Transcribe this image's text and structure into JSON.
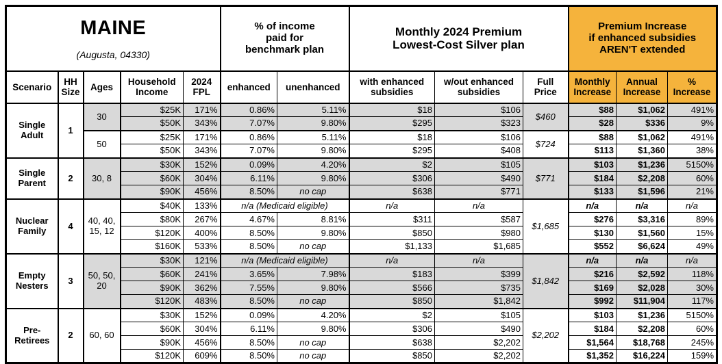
{
  "title": {
    "state": "MAINE",
    "city": "(Augusta, 04330)"
  },
  "section_headers": {
    "income_pct": "% of income\npaid for\nbenchmark plan",
    "premium": "Monthly 2024 Premium\nLowest-Cost Silver plan",
    "increase": "Premium Increase\nif enhanced subsidies\nAREN'T extended"
  },
  "column_headers": {
    "scenario": "Scenario",
    "hh_size": "HH\nSize",
    "ages": "Ages",
    "income": "Household\nIncome",
    "fpl": "2024\nFPL",
    "enhanced": "enhanced",
    "unenhanced": "unenhanced",
    "with_sub": "with enhanced\nsubsidies",
    "wout_sub": "w/out enhanced\nsubsidies",
    "full_price": "Full\nPrice",
    "monthly": "Monthly\nIncrease",
    "annual": "Annual\nIncrease",
    "pct": "%\nIncrease"
  },
  "colors": {
    "accent_orange": "#F5B33C",
    "row_gray": "#D9D9D9"
  },
  "chart_data": {
    "type": "table",
    "title": "MAINE (Augusta, 04330)",
    "groups": [
      {
        "scenario": "Single Adult",
        "hh_size": "1",
        "subgroups": [
          {
            "ages": "30",
            "shaded": true,
            "full_price": "$460",
            "rows": [
              {
                "income": "$25K",
                "fpl": "171%",
                "enhanced": "0.86%",
                "unenhanced": "5.11%",
                "with_sub": "$18",
                "wout_sub": "$106",
                "monthly": "$88",
                "annual": "$1,062",
                "pct": "491%"
              },
              {
                "income": "$50K",
                "fpl": "343%",
                "enhanced": "7.07%",
                "unenhanced": "9.80%",
                "with_sub": "$295",
                "wout_sub": "$323",
                "monthly": "$28",
                "annual": "$336",
                "pct": "9%"
              }
            ]
          },
          {
            "ages": "50",
            "shaded": false,
            "full_price": "$724",
            "rows": [
              {
                "income": "$25K",
                "fpl": "171%",
                "enhanced": "0.86%",
                "unenhanced": "5.11%",
                "with_sub": "$18",
                "wout_sub": "$106",
                "monthly": "$88",
                "annual": "$1,062",
                "pct": "491%"
              },
              {
                "income": "$50K",
                "fpl": "343%",
                "enhanced": "7.07%",
                "unenhanced": "9.80%",
                "with_sub": "$295",
                "wout_sub": "$408",
                "monthly": "$113",
                "annual": "$1,360",
                "pct": "38%"
              }
            ]
          }
        ]
      },
      {
        "scenario": "Single Parent",
        "hh_size": "2",
        "subgroups": [
          {
            "ages": "30, 8",
            "shaded": true,
            "full_price": "$771",
            "rows": [
              {
                "income": "$30K",
                "fpl": "152%",
                "enhanced": "0.09%",
                "unenhanced": "4.20%",
                "with_sub": "$2",
                "wout_sub": "$105",
                "monthly": "$103",
                "annual": "$1,236",
                "pct": "5150%"
              },
              {
                "income": "$60K",
                "fpl": "304%",
                "enhanced": "6.11%",
                "unenhanced": "9.80%",
                "with_sub": "$306",
                "wout_sub": "$490",
                "monthly": "$184",
                "annual": "$2,208",
                "pct": "60%"
              },
              {
                "income": "$90K",
                "fpl": "456%",
                "enhanced": "8.50%",
                "unenhanced": "no cap",
                "with_sub": "$638",
                "wout_sub": "$771",
                "monthly": "$133",
                "annual": "$1,596",
                "pct": "21%"
              }
            ]
          }
        ]
      },
      {
        "scenario": "Nuclear Family",
        "hh_size": "4",
        "subgroups": [
          {
            "ages": "40, 40, 15, 12",
            "shaded": false,
            "full_price": "$1,685",
            "rows": [
              {
                "income": "$40K",
                "fpl": "133%",
                "medicaid": "n/a (Medicaid eligible)",
                "with_sub": "n/a",
                "wout_sub": "n/a",
                "monthly": "n/a",
                "annual": "n/a",
                "pct": "n/a"
              },
              {
                "income": "$80K",
                "fpl": "267%",
                "enhanced": "4.67%",
                "unenhanced": "8.81%",
                "with_sub": "$311",
                "wout_sub": "$587",
                "monthly": "$276",
                "annual": "$3,316",
                "pct": "89%"
              },
              {
                "income": "$120K",
                "fpl": "400%",
                "enhanced": "8.50%",
                "unenhanced": "9.80%",
                "with_sub": "$850",
                "wout_sub": "$980",
                "monthly": "$130",
                "annual": "$1,560",
                "pct": "15%"
              },
              {
                "income": "$160K",
                "fpl": "533%",
                "enhanced": "8.50%",
                "unenhanced": "no cap",
                "with_sub": "$1,133",
                "wout_sub": "$1,685",
                "monthly": "$552",
                "annual": "$6,624",
                "pct": "49%"
              }
            ]
          }
        ]
      },
      {
        "scenario": "Empty Nesters",
        "hh_size": "3",
        "subgroups": [
          {
            "ages": "50, 50, 20",
            "shaded": true,
            "full_price": "$1,842",
            "rows": [
              {
                "income": "$30K",
                "fpl": "121%",
                "medicaid": "n/a (Medicaid eligible)",
                "with_sub": "n/a",
                "wout_sub": "n/a",
                "monthly": "n/a",
                "annual": "n/a",
                "pct": "n/a"
              },
              {
                "income": "$60K",
                "fpl": "241%",
                "enhanced": "3.65%",
                "unenhanced": "7.98%",
                "with_sub": "$183",
                "wout_sub": "$399",
                "monthly": "$216",
                "annual": "$2,592",
                "pct": "118%"
              },
              {
                "income": "$90K",
                "fpl": "362%",
                "enhanced": "7.55%",
                "unenhanced": "9.80%",
                "with_sub": "$566",
                "wout_sub": "$735",
                "monthly": "$169",
                "annual": "$2,028",
                "pct": "30%"
              },
              {
                "income": "$120K",
                "fpl": "483%",
                "enhanced": "8.50%",
                "unenhanced": "no cap",
                "with_sub": "$850",
                "wout_sub": "$1,842",
                "monthly": "$992",
                "annual": "$11,904",
                "pct": "117%"
              }
            ]
          }
        ]
      },
      {
        "scenario": "Pre-Retirees",
        "hh_size": "2",
        "subgroups": [
          {
            "ages": "60, 60",
            "shaded": false,
            "full_price": "$2,202",
            "rows": [
              {
                "income": "$30K",
                "fpl": "152%",
                "enhanced": "0.09%",
                "unenhanced": "4.20%",
                "with_sub": "$2",
                "wout_sub": "$105",
                "monthly": "$103",
                "annual": "$1,236",
                "pct": "5150%"
              },
              {
                "income": "$60K",
                "fpl": "304%",
                "enhanced": "6.11%",
                "unenhanced": "9.80%",
                "with_sub": "$306",
                "wout_sub": "$490",
                "monthly": "$184",
                "annual": "$2,208",
                "pct": "60%"
              },
              {
                "income": "$90K",
                "fpl": "456%",
                "enhanced": "8.50%",
                "unenhanced": "no cap",
                "with_sub": "$638",
                "wout_sub": "$2,202",
                "monthly": "$1,564",
                "annual": "$18,768",
                "pct": "245%"
              },
              {
                "income": "$120K",
                "fpl": "609%",
                "enhanced": "8.50%",
                "unenhanced": "no cap",
                "with_sub": "$850",
                "wout_sub": "$2,202",
                "monthly": "$1,352",
                "annual": "$16,224",
                "pct": "159%"
              }
            ]
          }
        ]
      }
    ]
  }
}
